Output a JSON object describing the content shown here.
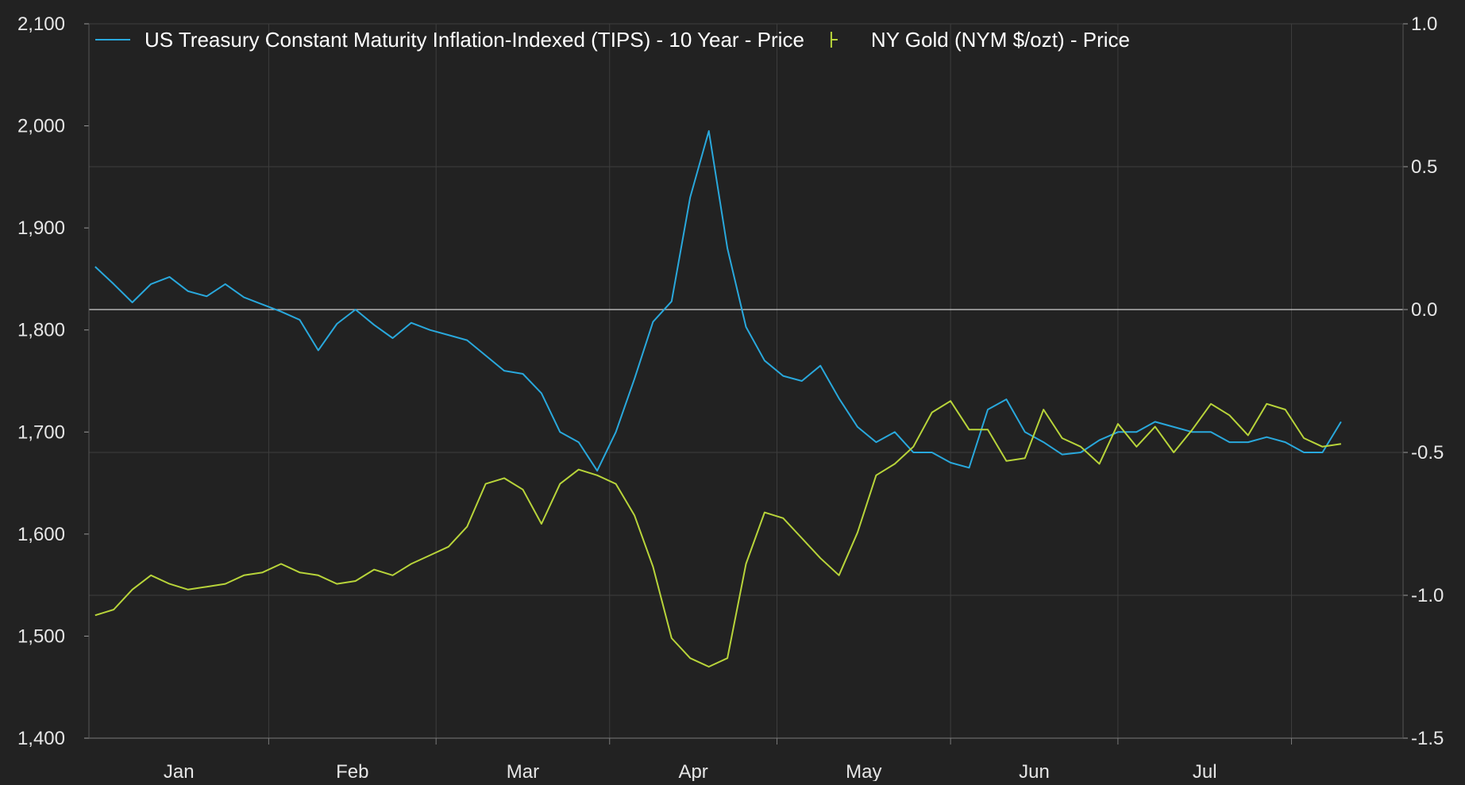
{
  "chart_data": {
    "type": "line",
    "title": "",
    "xlabel": "",
    "x_ticks": [
      "Jan",
      "Feb",
      "Mar",
      "Apr",
      "May",
      "Jun",
      "Jul"
    ],
    "y_left": {
      "range": [
        1400,
        2100
      ],
      "ticks": [
        "1,400",
        "1,500",
        "1,600",
        "1,700",
        "1,800",
        "1,900",
        "2,000",
        "2,100"
      ]
    },
    "y_right": {
      "range": [
        -1.5,
        1.0
      ],
      "ticks": [
        "-1.5",
        "-1.0",
        "-0.5",
        "0.0",
        "0.5",
        "1.0"
      ]
    },
    "grid": true,
    "legend_placement": "top",
    "series": [
      {
        "name": "US Treasury Constant Maturity Inflation-Indexed (TIPS) - 10 Year - Price",
        "axis": "left",
        "color": "#29a8dc",
        "x": [
          1,
          4,
          7,
          10,
          13,
          16,
          19,
          22,
          25,
          28,
          31,
          34,
          37,
          40,
          43,
          46,
          49,
          52,
          55,
          58,
          61,
          64,
          67,
          70,
          73,
          76,
          79,
          82,
          85,
          88,
          91,
          94,
          97,
          100,
          103,
          106,
          109,
          112,
          115,
          118,
          121,
          124,
          127,
          130,
          133,
          136,
          139,
          142,
          145,
          148,
          151,
          154,
          157,
          160,
          163,
          166,
          169,
          172,
          175,
          178,
          181,
          184,
          187,
          190,
          193,
          196,
          199,
          202
        ],
        "y": [
          1862,
          1845,
          1827,
          1845,
          1852,
          1838,
          1833,
          1845,
          1832,
          1825,
          1818,
          1810,
          1780,
          1806,
          1820,
          1805,
          1792,
          1807,
          1800,
          1795,
          1790,
          1775,
          1760,
          1757,
          1738,
          1700,
          1690,
          1662,
          1700,
          1752,
          1808,
          1828,
          1930,
          1995,
          1880,
          1803,
          1770,
          1755,
          1750,
          1765,
          1733,
          1705,
          1690,
          1700,
          1680,
          1680,
          1670,
          1665,
          1722,
          1732,
          1700,
          1690,
          1678,
          1680,
          1692,
          1700,
          1700,
          1710,
          1705,
          1700,
          1700,
          1690,
          1690,
          1695,
          1690,
          1680,
          1680,
          1710
        ]
      },
      {
        "name": "NY Gold (NYM $/ozt) - Price",
        "axis": "right",
        "color": "#b8d43a",
        "x": [
          1,
          4,
          7,
          10,
          13,
          16,
          19,
          22,
          25,
          28,
          31,
          34,
          37,
          40,
          43,
          46,
          49,
          52,
          55,
          58,
          61,
          64,
          67,
          70,
          73,
          76,
          79,
          82,
          85,
          88,
          91,
          94,
          97,
          100,
          103,
          106,
          109,
          112,
          115,
          118,
          121,
          124,
          127,
          130,
          133,
          136,
          139,
          142,
          145,
          148,
          151,
          154,
          157,
          160,
          163,
          166,
          169,
          172,
          175,
          178,
          181,
          184,
          187,
          190,
          193,
          196,
          199,
          202
        ],
        "y": [
          -1.07,
          -1.05,
          -0.98,
          -0.93,
          -0.96,
          -0.98,
          -0.97,
          -0.96,
          -0.93,
          -0.92,
          -0.89,
          -0.92,
          -0.93,
          -0.96,
          -0.95,
          -0.91,
          -0.93,
          -0.89,
          -0.86,
          -0.83,
          -0.76,
          -0.61,
          -0.59,
          -0.63,
          -0.75,
          -0.61,
          -0.56,
          -0.58,
          -0.61,
          -0.72,
          -0.9,
          -1.15,
          -1.22,
          -1.25,
          -1.22,
          -0.89,
          -0.71,
          -0.73,
          -0.8,
          -0.87,
          -0.93,
          -0.78,
          -0.58,
          -0.54,
          -0.48,
          -0.36,
          -0.32,
          -0.42,
          -0.42,
          -0.53,
          -0.52,
          -0.35,
          -0.45,
          -0.48,
          -0.54,
          -0.4,
          -0.48,
          -0.41,
          -0.5,
          -0.42,
          -0.33,
          -0.37,
          -0.44,
          -0.33,
          -0.35,
          -0.45,
          -0.48,
          -0.47
        ],
        "note_unused": null
      }
    ]
  }
}
